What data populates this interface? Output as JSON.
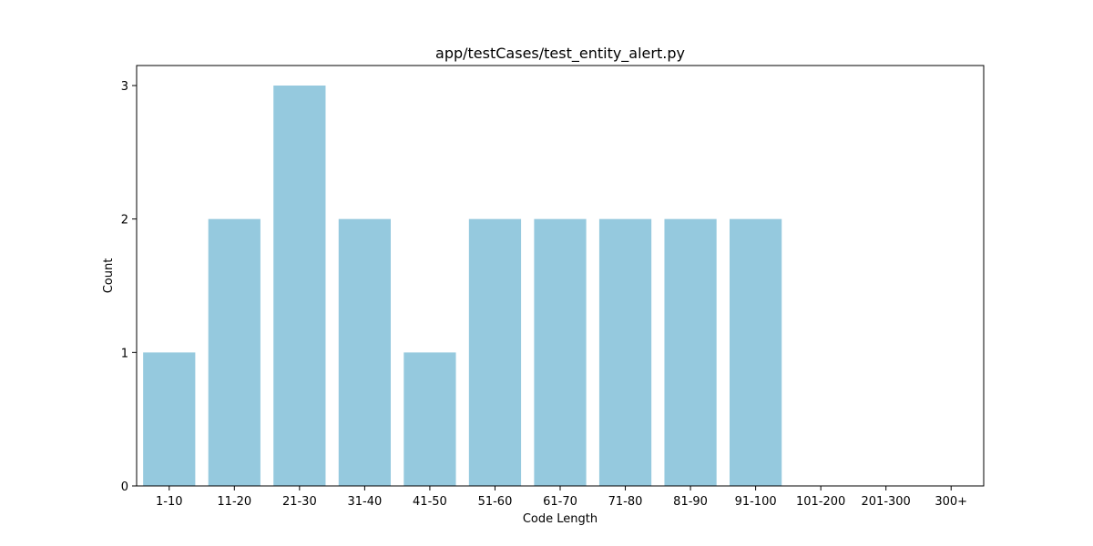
{
  "chart_data": {
    "type": "bar",
    "title": "app/testCases/test_entity_alert.py",
    "xlabel": "Code Length",
    "ylabel": "Count",
    "categories": [
      "1-10",
      "11-20",
      "21-30",
      "31-40",
      "41-50",
      "51-60",
      "61-70",
      "71-80",
      "81-90",
      "91-100",
      "101-200",
      "201-300",
      "300+"
    ],
    "values": [
      1,
      2,
      3,
      2,
      1,
      2,
      2,
      2,
      2,
      2,
      0,
      0,
      0
    ],
    "ylim": [
      0,
      3.15
    ],
    "yticks": [
      0,
      1,
      2,
      3
    ],
    "grid": false,
    "bar_color": "#95c9de"
  }
}
